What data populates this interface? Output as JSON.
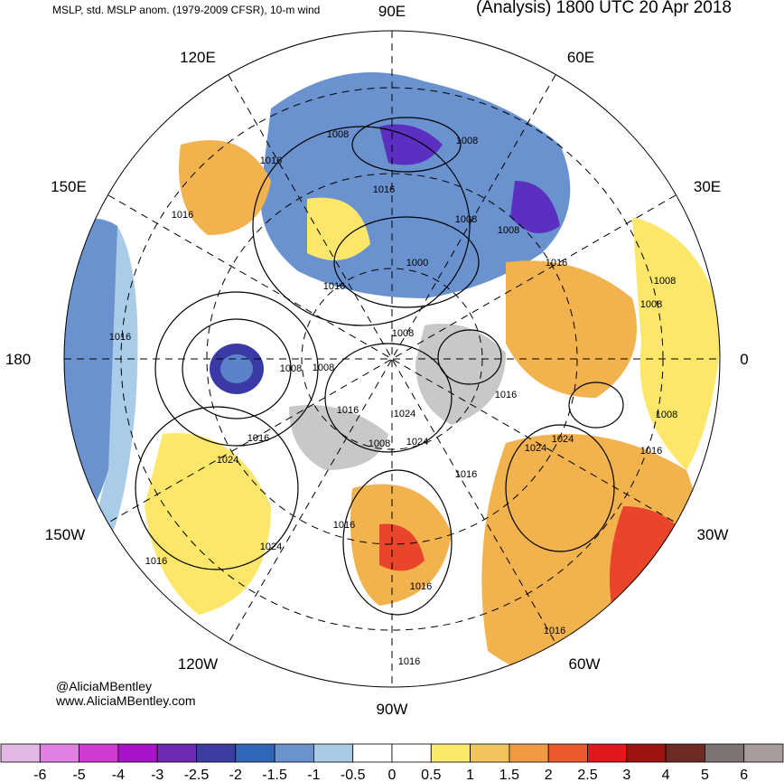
{
  "header": {
    "left_title": "MSLP, std. MSLP anom. (1979-2009 CFSR), 10-m wind",
    "right_title": "(Analysis) 1800 UTC 20 Apr 2018"
  },
  "map": {
    "projection": "north-polar-stereographic",
    "longitude_labels": [
      "90E",
      "60E",
      "30E",
      "0",
      "30W",
      "60W",
      "90W",
      "120W",
      "150W",
      "180",
      "150E",
      "120E"
    ],
    "isobar_labels": [
      "1008",
      "1008",
      "1016",
      "1016",
      "1016",
      "1008",
      "1008",
      "1000",
      "1016",
      "1016",
      "1008",
      "1008",
      "1016",
      "1008",
      "1016",
      "1008",
      "1016",
      "1024",
      "1016",
      "1024",
      "1008",
      "1016",
      "1016",
      "1024",
      "1008",
      "1016",
      "1024",
      "1016",
      "1016",
      "1024",
      "1016",
      "1016",
      "1024",
      "1008"
    ],
    "low_centers_color": "#3a3aa6",
    "anomaly_colors": {
      "strong_negative": "#5b2fc0",
      "negative": "#5b83c9",
      "weak_negative": "#a9cde8",
      "neutral": "#ffffff",
      "weak_positive": "#fce76a",
      "positive": "#f2b24e",
      "strong_positive": "#e8452a",
      "land_neutral": "#c8c8c8"
    }
  },
  "credits": {
    "line1": "@AliciaMBentley",
    "line2": "www.AliciaMBentley.com"
  },
  "colorbar": {
    "ticks": [
      "-6",
      "-5",
      "-4",
      "-3",
      "-2.5",
      "-2",
      "-1.5",
      "-1",
      "-0.5",
      "0",
      "0.5",
      "1",
      "1.5",
      "2",
      "2.5",
      "3",
      "4",
      "5",
      "6"
    ],
    "colors": [
      "#e3b7e3",
      "#e27fe2",
      "#cf3ad3",
      "#aa14c9",
      "#6f29b3",
      "#3c3ca5",
      "#2f68b8",
      "#6a92cf",
      "#a8cbe6",
      "#ffffff",
      "#ffffff",
      "#fce96a",
      "#f2c45c",
      "#ef9a41",
      "#eb5a2d",
      "#e0171b",
      "#a0130f",
      "#6e2a24",
      "#7f7474",
      "#a89b9b"
    ]
  }
}
